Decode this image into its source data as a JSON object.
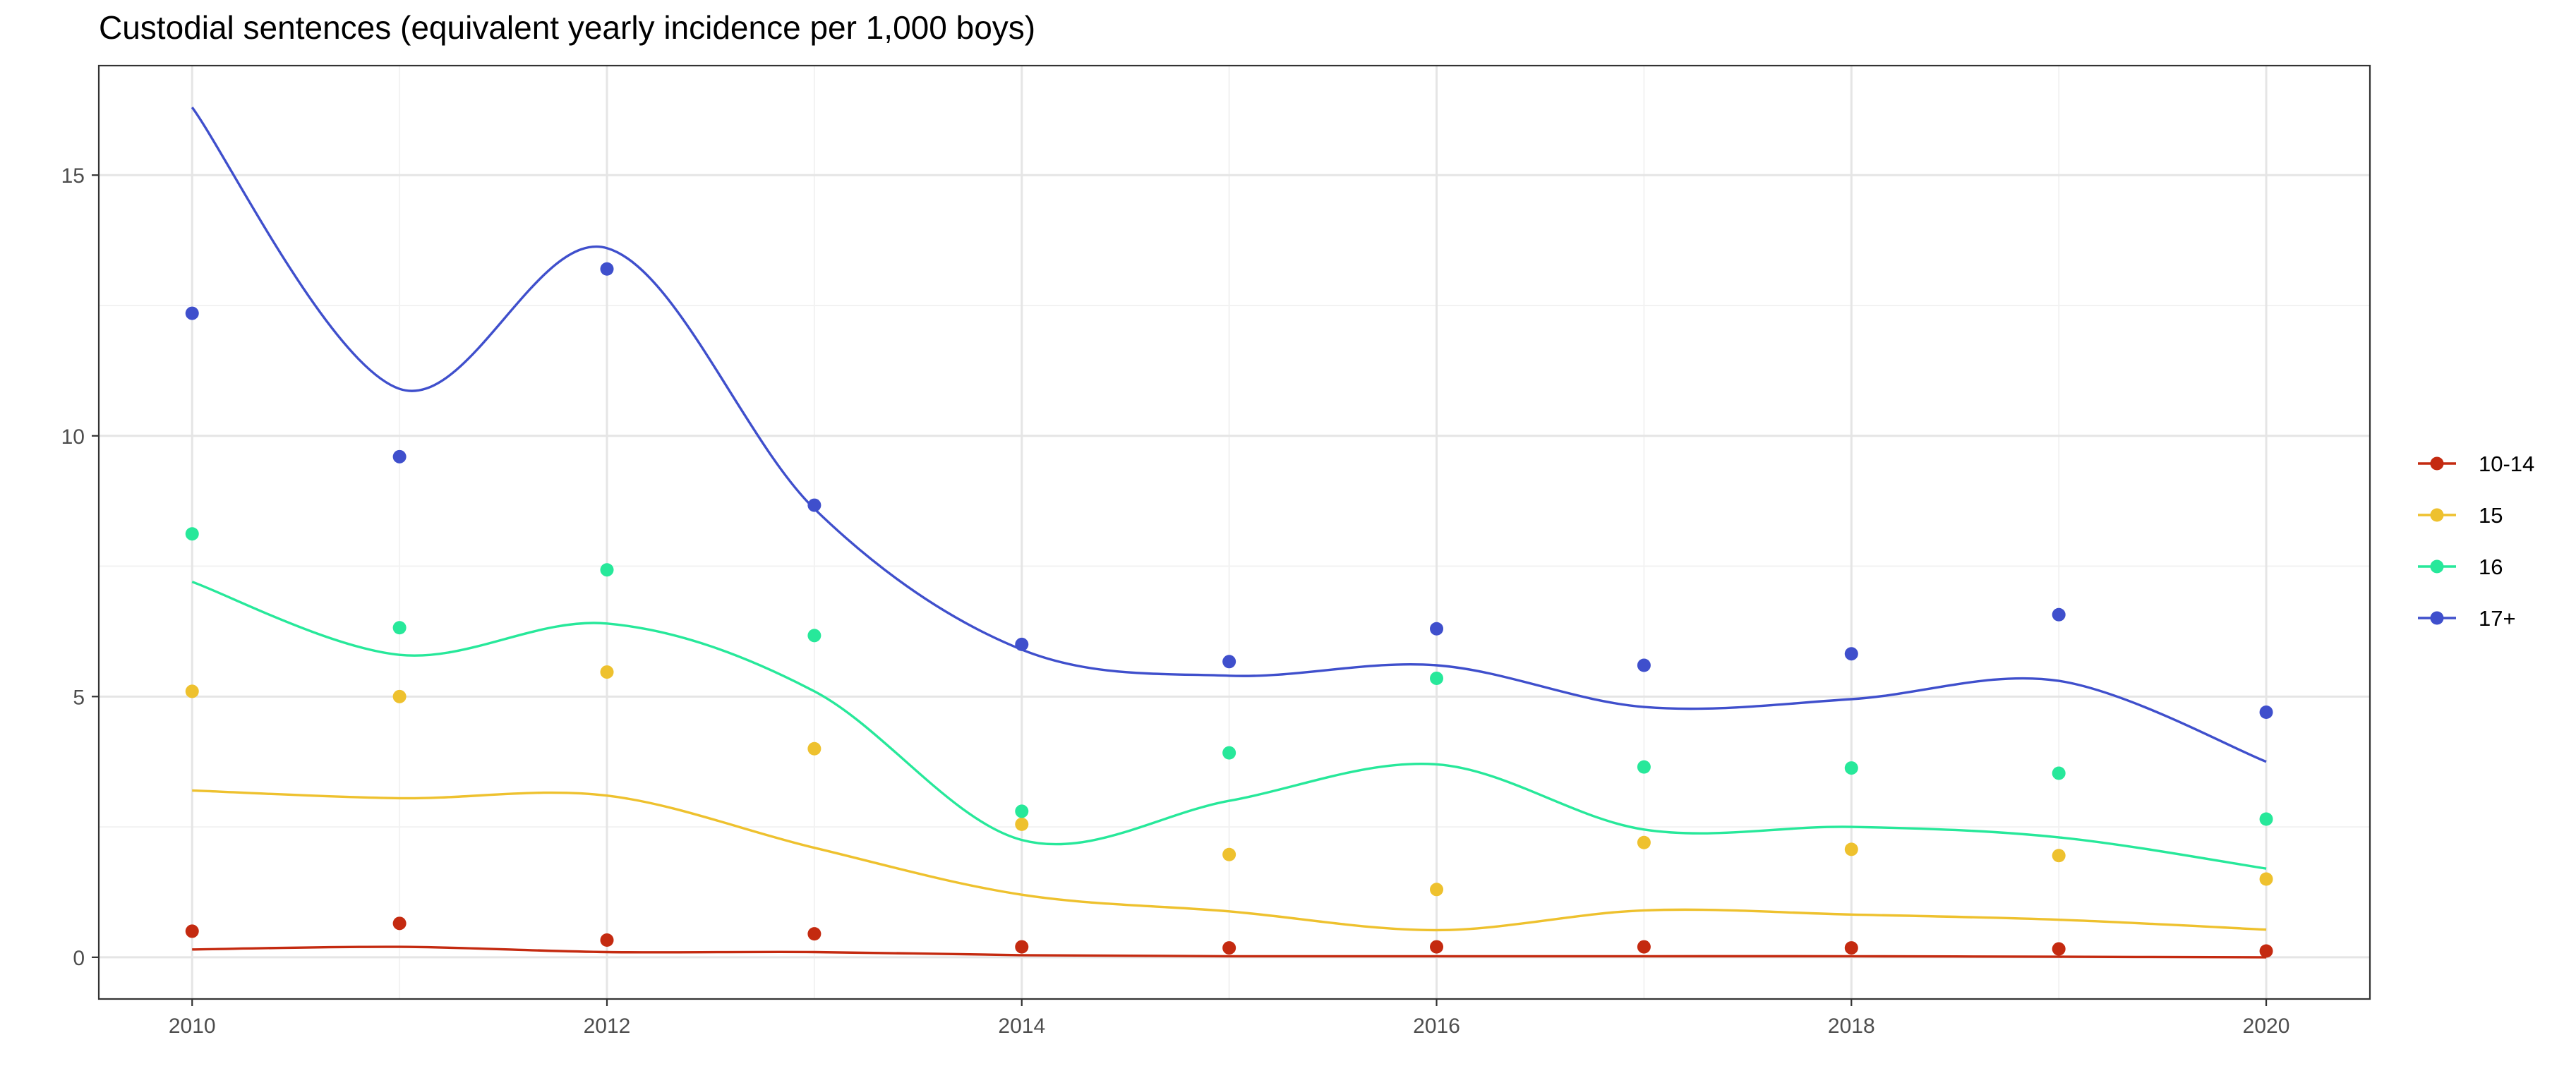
{
  "chart_data": {
    "type": "line",
    "title": "Custodial sentences (equivalent yearly incidence per 1,000 boys)",
    "xlabel": "",
    "ylabel": "",
    "x": [
      2010,
      2011,
      2012,
      2013,
      2014,
      2015,
      2016,
      2017,
      2018,
      2019,
      2020
    ],
    "xlim": [
      2009.55,
      2020.5
    ],
    "ylim": [
      -0.8,
      17.1
    ],
    "x_ticks": [
      "2010",
      "2012",
      "2014",
      "2016",
      "2018",
      "2020"
    ],
    "y_ticks": [
      "0",
      "5",
      "10",
      "15"
    ],
    "grid": true,
    "legend_position": "right",
    "points_and_smoothed_line": true,
    "series": [
      {
        "name": "10-14",
        "color": "#c42a10",
        "values": [
          0.5,
          0.65,
          0.33,
          0.45,
          0.2,
          0.18,
          0.2,
          0.2,
          0.18,
          0.16,
          0.12
        ],
        "smooth": [
          0.15,
          0.2,
          0.1,
          0.1,
          0.04,
          0.02,
          0.02,
          0.02,
          0.02,
          0.01,
          0.0
        ]
      },
      {
        "name": "15",
        "color": "#eec12e",
        "values": [
          5.1,
          5.0,
          5.47,
          4.0,
          2.55,
          1.97,
          1.3,
          2.2,
          2.07,
          1.95,
          1.5
        ],
        "smooth": [
          3.2,
          3.05,
          3.1,
          2.1,
          1.2,
          0.88,
          0.52,
          0.9,
          0.82,
          0.72,
          0.53
        ]
      },
      {
        "name": "16",
        "color": "#27e89a",
        "values": [
          8.12,
          6.32,
          7.43,
          6.17,
          2.8,
          3.92,
          5.35,
          3.65,
          3.63,
          3.53,
          2.65
        ],
        "smooth": [
          7.2,
          5.8,
          6.4,
          5.1,
          2.25,
          3.0,
          3.7,
          2.45,
          2.5,
          2.3,
          1.7
        ]
      },
      {
        "name": "17+",
        "color": "#3f4fcc",
        "values": [
          12.35,
          9.6,
          13.2,
          8.67,
          6.0,
          5.67,
          6.3,
          5.6,
          5.82,
          6.57,
          4.7
        ],
        "smooth": [
          16.3,
          10.9,
          13.6,
          8.6,
          5.9,
          5.4,
          5.6,
          4.8,
          4.95,
          5.3,
          3.75
        ]
      }
    ]
  }
}
